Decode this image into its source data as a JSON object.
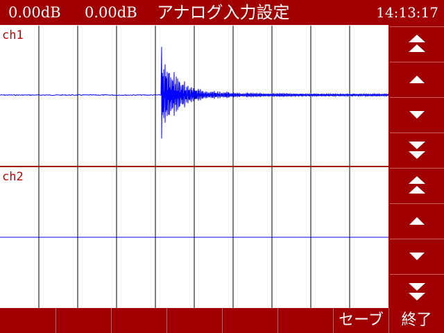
{
  "header": {
    "level_ch1": "0.00dB",
    "level_ch2": "0.00dB",
    "title": "アナログ入力設定",
    "time": "14:13:17"
  },
  "channels": [
    {
      "label": "ch1",
      "waveform_color": "#0000ff"
    },
    {
      "label": "ch2",
      "waveform_color": "#0000ff"
    }
  ],
  "side_buttons": [
    {
      "icon": "double-up-arrow-icon",
      "action": "ch1-scale-up-fast"
    },
    {
      "icon": "up-arrow-icon",
      "action": "ch1-scale-up"
    },
    {
      "icon": "down-arrow-icon",
      "action": "ch1-scale-down"
    },
    {
      "icon": "double-down-arrow-icon",
      "action": "ch1-scale-down-fast"
    },
    {
      "icon": "double-up-arrow-icon",
      "action": "ch2-scale-up-fast"
    },
    {
      "icon": "up-arrow-icon",
      "action": "ch2-scale-up"
    },
    {
      "icon": "down-arrow-icon",
      "action": "ch2-scale-down"
    },
    {
      "icon": "double-down-arrow-icon",
      "action": "ch2-scale-down-fast"
    }
  ],
  "bottom_bar": {
    "empty_buttons": 6,
    "save_label": "セーブ",
    "exit_label": "終了"
  },
  "colors": {
    "chrome": "#a00000",
    "grid": "#000000",
    "label": "#c00000",
    "trace": "#0000ff"
  }
}
